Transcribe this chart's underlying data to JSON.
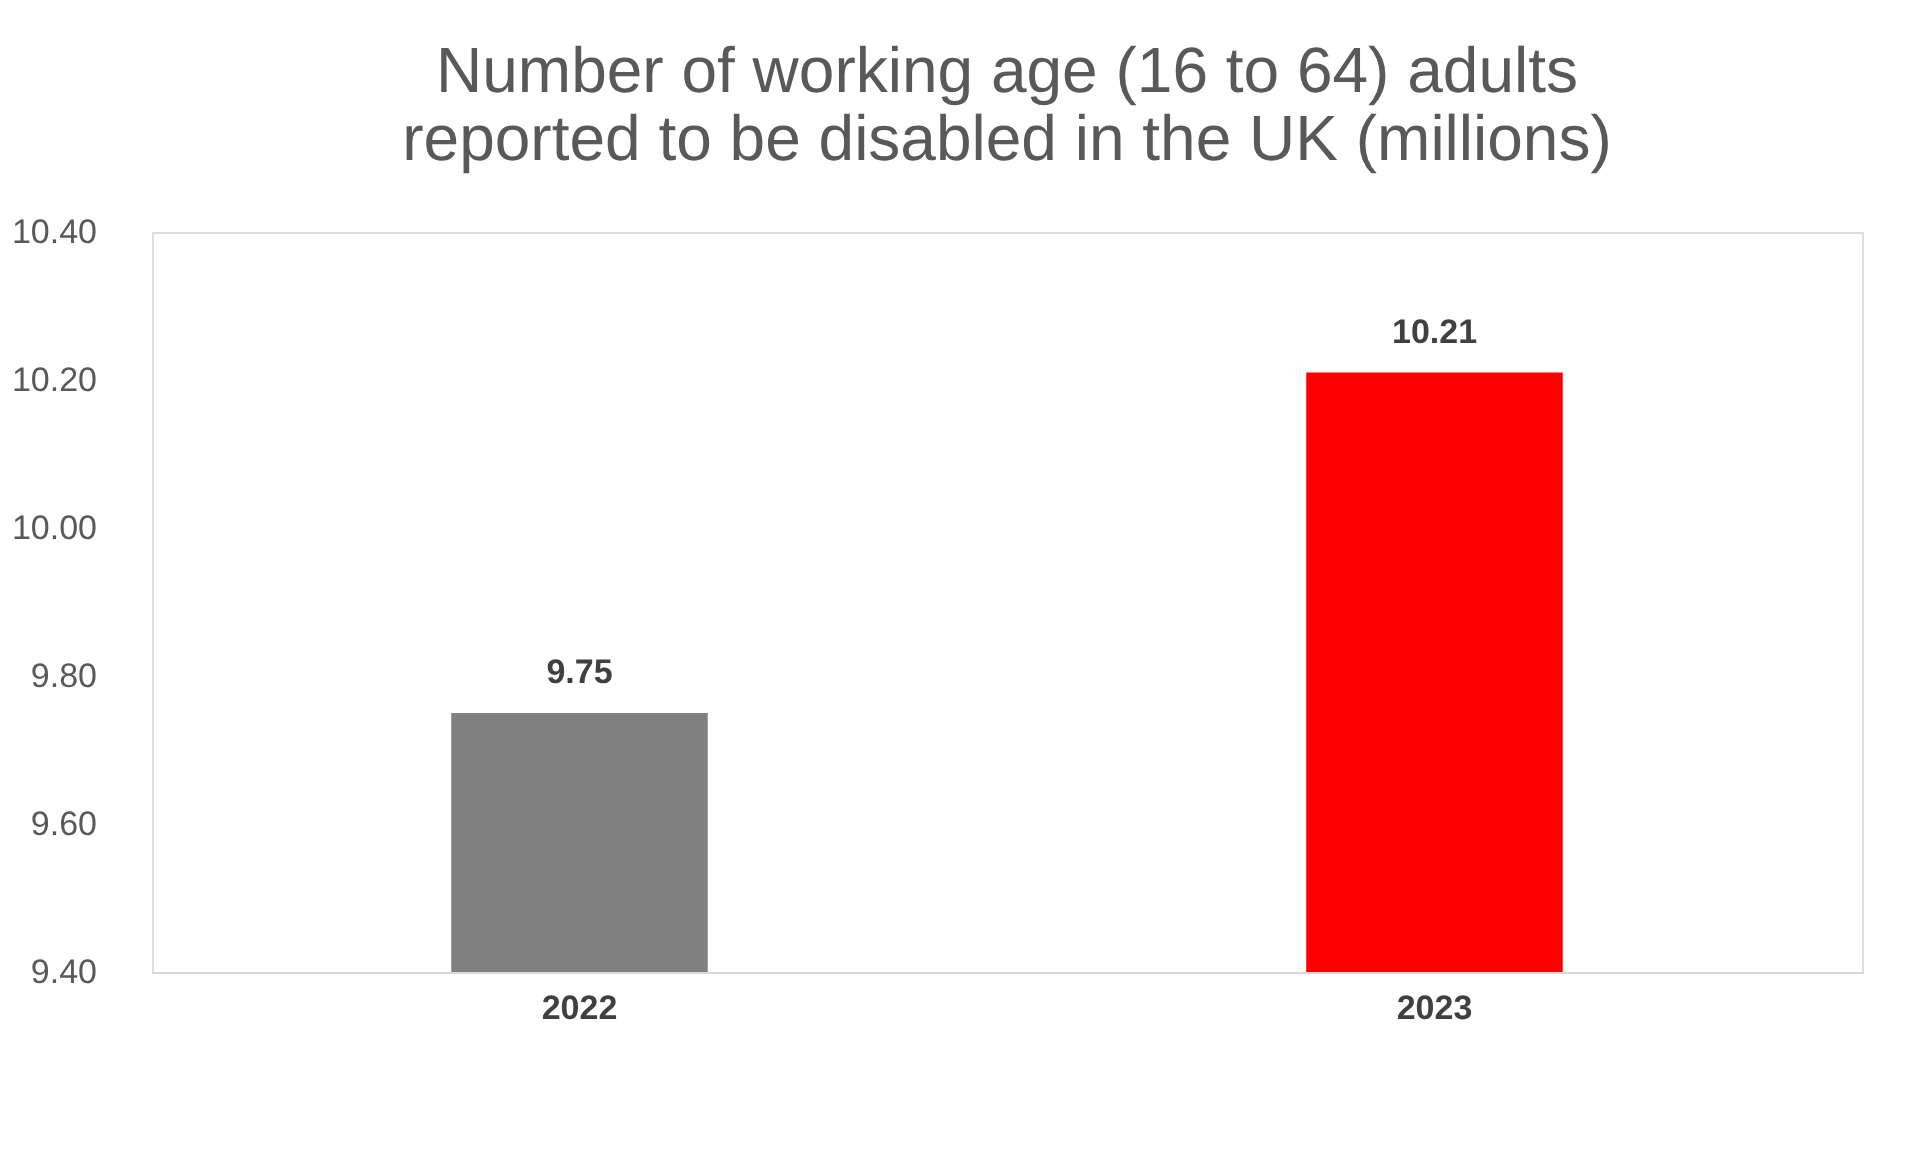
{
  "chart_data": {
    "type": "bar",
    "title": "Number of working age (16 to 64) adults reported to be disabled in the UK (millions)",
    "categories": [
      "2022",
      "2023"
    ],
    "values": [
      9.75,
      10.21
    ],
    "colors": [
      "#808080",
      "#ff0000"
    ],
    "ylim": [
      9.4,
      10.4
    ],
    "yticks": [
      {
        "value": 9.4,
        "label": "9.40"
      },
      {
        "value": 9.6,
        "label": "9.60"
      },
      {
        "value": 9.8,
        "label": "9.80"
      },
      {
        "value": 10.0,
        "label": "10.00"
      },
      {
        "value": 10.2,
        "label": "10.20"
      },
      {
        "value": 10.4,
        "label": "10.40"
      }
    ],
    "data_labels": true,
    "grid": false
  }
}
